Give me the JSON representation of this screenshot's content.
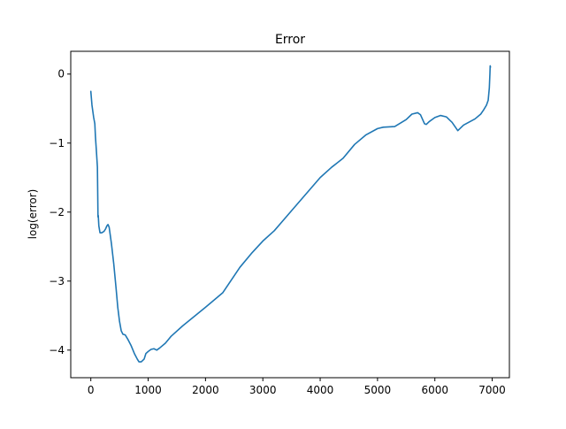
{
  "chart_data": {
    "type": "line",
    "title": "Error",
    "xlabel": "",
    "ylabel": "log(error)",
    "xlim": [
      -350,
      7300
    ],
    "ylim": [
      -4.4,
      0.33
    ],
    "xticks": [
      0,
      1000,
      2000,
      3000,
      4000,
      5000,
      6000,
      7000
    ],
    "xtick_labels": [
      "0",
      "1000",
      "2000",
      "3000",
      "4000",
      "5000",
      "6000",
      "7000"
    ],
    "yticks": [
      0,
      -1,
      -2,
      -3,
      -4
    ],
    "ytick_labels": [
      "0",
      "−1",
      "−2",
      "−3",
      "−4"
    ],
    "grid": false,
    "series": [
      {
        "color": "#1f77b4",
        "points": [
          [
            0,
            -0.25
          ],
          [
            20,
            -0.45
          ],
          [
            50,
            -0.63
          ],
          [
            70,
            -0.72
          ],
          [
            80,
            -0.9
          ],
          [
            100,
            -1.15
          ],
          [
            115,
            -1.35
          ],
          [
            120,
            -1.7
          ],
          [
            125,
            -2.07
          ],
          [
            130,
            -2.05
          ],
          [
            140,
            -2.2
          ],
          [
            160,
            -2.3
          ],
          [
            190,
            -2.3
          ],
          [
            230,
            -2.28
          ],
          [
            260,
            -2.24
          ],
          [
            280,
            -2.2
          ],
          [
            300,
            -2.18
          ],
          [
            320,
            -2.22
          ],
          [
            360,
            -2.46
          ],
          [
            400,
            -2.75
          ],
          [
            440,
            -3.1
          ],
          [
            470,
            -3.38
          ],
          [
            500,
            -3.58
          ],
          [
            530,
            -3.72
          ],
          [
            560,
            -3.77
          ],
          [
            600,
            -3.78
          ],
          [
            650,
            -3.85
          ],
          [
            700,
            -3.93
          ],
          [
            760,
            -4.05
          ],
          [
            810,
            -4.13
          ],
          [
            840,
            -4.17
          ],
          [
            880,
            -4.17
          ],
          [
            930,
            -4.13
          ],
          [
            960,
            -4.05
          ],
          [
            1000,
            -4.02
          ],
          [
            1050,
            -3.99
          ],
          [
            1100,
            -3.98
          ],
          [
            1150,
            -4.0
          ],
          [
            1200,
            -3.97
          ],
          [
            1300,
            -3.9
          ],
          [
            1400,
            -3.8
          ],
          [
            1600,
            -3.65
          ],
          [
            2000,
            -3.38
          ],
          [
            2300,
            -3.17
          ],
          [
            2600,
            -2.8
          ],
          [
            2800,
            -2.6
          ],
          [
            3000,
            -2.42
          ],
          [
            3200,
            -2.27
          ],
          [
            3500,
            -1.98
          ],
          [
            4000,
            -1.5
          ],
          [
            4200,
            -1.35
          ],
          [
            4400,
            -1.22
          ],
          [
            4600,
            -1.02
          ],
          [
            4800,
            -0.88
          ],
          [
            5000,
            -0.79
          ],
          [
            5100,
            -0.77
          ],
          [
            5300,
            -0.76
          ],
          [
            5500,
            -0.66
          ],
          [
            5600,
            -0.58
          ],
          [
            5700,
            -0.56
          ],
          [
            5750,
            -0.59
          ],
          [
            5820,
            -0.72
          ],
          [
            5850,
            -0.73
          ],
          [
            5900,
            -0.69
          ],
          [
            6000,
            -0.63
          ],
          [
            6100,
            -0.6
          ],
          [
            6200,
            -0.62
          ],
          [
            6300,
            -0.7
          ],
          [
            6400,
            -0.82
          ],
          [
            6450,
            -0.78
          ],
          [
            6500,
            -0.74
          ],
          [
            6700,
            -0.65
          ],
          [
            6800,
            -0.58
          ],
          [
            6850,
            -0.52
          ],
          [
            6900,
            -0.45
          ],
          [
            6930,
            -0.38
          ],
          [
            6950,
            -0.2
          ],
          [
            6960,
            0.0
          ],
          [
            6965,
            0.12
          ],
          [
            6970,
            0.1
          ]
        ]
      }
    ]
  }
}
